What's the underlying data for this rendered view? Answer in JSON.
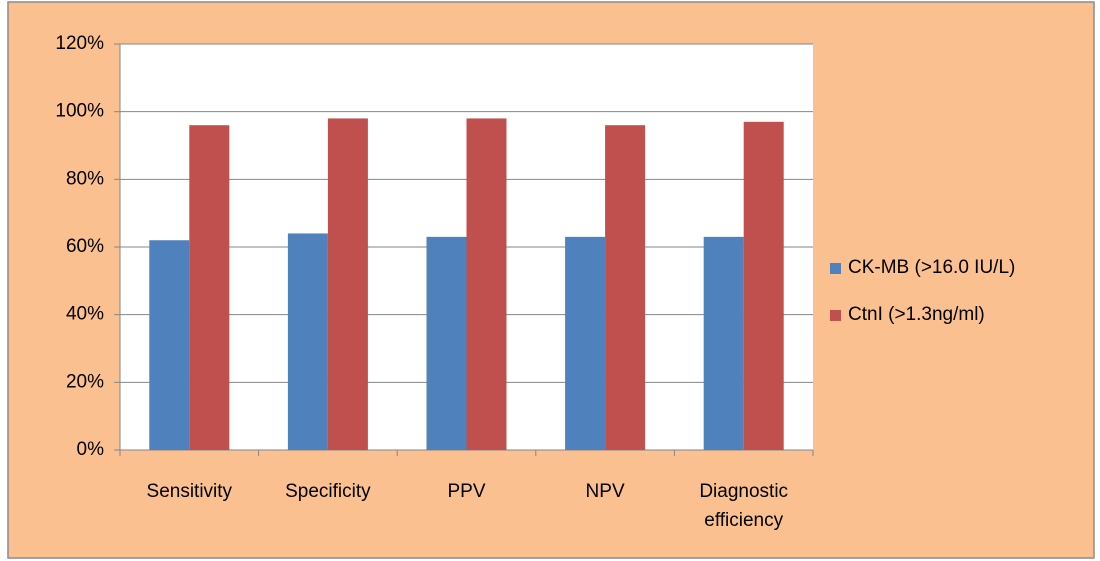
{
  "chart_data": {
    "type": "bar",
    "categories": [
      "Sensitivity",
      "Specificity",
      "PPV",
      "NPV",
      "Diagnostic efficiency"
    ],
    "series": [
      {
        "name": "CK-MB (>16.0 IU/L)",
        "color": "#4f81bd",
        "values": [
          62,
          64,
          63,
          63,
          63
        ]
      },
      {
        "name": "CtnI (>1.3ng/ml)",
        "color": "#c0504d",
        "values": [
          96,
          98,
          98,
          96,
          97
        ]
      }
    ],
    "ylim": [
      0,
      120
    ],
    "yticks": [
      {
        "value": 0,
        "label": "0%"
      },
      {
        "value": 20,
        "label": "20%"
      },
      {
        "value": 40,
        "label": "40%"
      },
      {
        "value": 60,
        "label": "60%"
      },
      {
        "value": 80,
        "label": "80%"
      },
      {
        "value": 100,
        "label": "100%"
      },
      {
        "value": 120,
        "label": "120%"
      }
    ],
    "grid": true,
    "legend": "right"
  }
}
